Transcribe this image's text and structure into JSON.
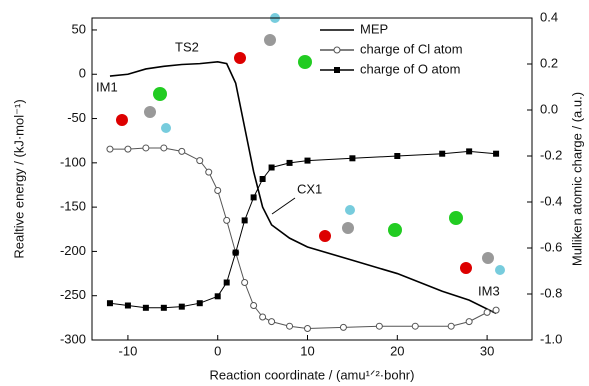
{
  "chart_data": {
    "type": "line",
    "xlabel": "Reaction coordinate / (amu¹ᐟ²·bohr)",
    "ylabel": "Realtive energy / (kJ·mol⁻¹)",
    "y2label": "Mulliken atomic charge / (a.u.)",
    "xlim": [
      -14,
      35
    ],
    "xticks": [
      -10,
      0,
      10,
      20,
      30
    ],
    "ylim": [
      -300,
      63.5
    ],
    "yticks": [
      50,
      0,
      -50,
      -100,
      -150,
      -200,
      -250,
      -300
    ],
    "y2lim": [
      -1.0,
      0.4
    ],
    "y2ticks": [
      0.4,
      0.2,
      {
        "value": 0,
        "label": "0.0"
      },
      -0.2,
      -0.4,
      -0.6,
      -0.8,
      {
        "value": -1,
        "label": "-1.0"
      }
    ],
    "legend": "top-right",
    "annotations": [
      "TS2",
      "IM1",
      "CX1",
      "IM3"
    ],
    "series": [
      {
        "name": "MEP",
        "color": "#000000",
        "marker": "none",
        "x": [
          -12,
          -10,
          -8,
          -6,
          -4,
          -2,
          0,
          1,
          2,
          3,
          4,
          5,
          6,
          8,
          10,
          15,
          20,
          25,
          28,
          31
        ],
        "values": [
          -2,
          0,
          6,
          9,
          11,
          12,
          14,
          12,
          -10,
          -60,
          -110,
          -150,
          -170,
          -185,
          -195,
          -210,
          -225,
          -245,
          -255,
          -270
        ]
      },
      {
        "name": "charge of Cl atom",
        "color": "#555555",
        "marker": "circle",
        "axis": "y2",
        "x": [
          -12,
          -10,
          -8,
          -6,
          -4,
          -2,
          -1,
          0,
          1,
          2,
          3,
          4,
          5,
          6,
          8,
          10,
          14,
          18,
          22,
          26,
          28,
          30,
          31
        ],
        "values": [
          -0.17,
          -0.17,
          -0.165,
          -0.165,
          -0.18,
          -0.22,
          -0.27,
          -0.35,
          -0.48,
          -0.62,
          -0.75,
          -0.85,
          -0.9,
          -0.92,
          -0.94,
          -0.95,
          -0.945,
          -0.94,
          -0.94,
          -0.94,
          -0.92,
          -0.88,
          -0.87
        ]
      },
      {
        "name": "charge of O atom",
        "color": "#000000",
        "marker": "square",
        "axis": "y2",
        "x": [
          -12,
          -10,
          -8,
          -6,
          -4,
          -2,
          0,
          1,
          2,
          3,
          4,
          5,
          6,
          8,
          10,
          15,
          20,
          25,
          28,
          31
        ],
        "values": [
          -0.84,
          -0.85,
          -0.86,
          -0.86,
          -0.855,
          -0.84,
          -0.81,
          -0.75,
          -0.62,
          -0.48,
          -0.38,
          -0.3,
          -0.25,
          -0.23,
          -0.22,
          -0.21,
          -0.2,
          -0.19,
          -0.18,
          -0.19
        ]
      }
    ]
  }
}
